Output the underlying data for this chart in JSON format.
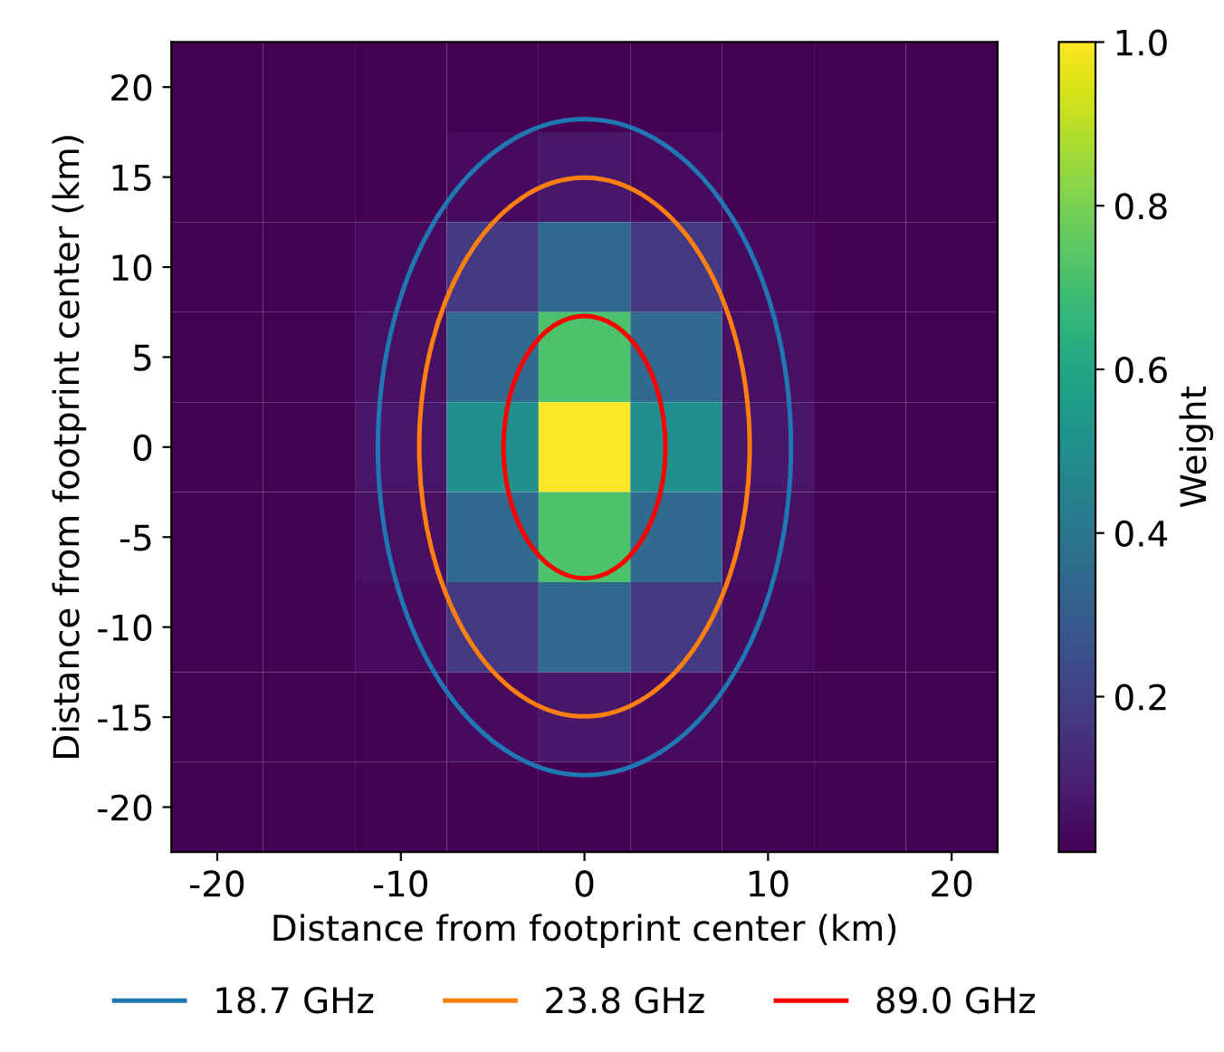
{
  "chart_data": {
    "type": "heatmap",
    "xlabel": "Distance from footprint center (km)",
    "ylabel": "Distance from footprint center (km)",
    "clabel": "Weight",
    "xlim": [
      -22.5,
      22.5
    ],
    "ylim": [
      -22.5,
      22.5
    ],
    "xticks": [
      -20,
      -10,
      0,
      10,
      20
    ],
    "yticks": [
      -20,
      -15,
      -10,
      -5,
      0,
      5,
      10,
      15,
      20
    ],
    "clim": [
      0.01,
      1.0
    ],
    "cticks": [
      0.2,
      0.4,
      0.6,
      0.8,
      {
        "value": 1.0,
        "label": "1.0"
      }
    ],
    "cells": [
      [
        0.01,
        0.01,
        0.01,
        0.01,
        0.01,
        0.01,
        0.01,
        0.01,
        0.01
      ],
      [
        0.01,
        0.01,
        0.01,
        0.04,
        0.07,
        0.04,
        0.01,
        0.01,
        0.01
      ],
      [
        0.01,
        0.01,
        0.04,
        0.18,
        0.35,
        0.18,
        0.04,
        0.01,
        0.01
      ],
      [
        0.01,
        0.01,
        0.05,
        0.35,
        0.72,
        0.35,
        0.05,
        0.01,
        0.01
      ],
      [
        0.01,
        0.01,
        0.07,
        0.5,
        1.0,
        0.5,
        0.07,
        0.01,
        0.01
      ],
      [
        0.01,
        0.01,
        0.05,
        0.35,
        0.72,
        0.35,
        0.05,
        0.01,
        0.01
      ],
      [
        0.01,
        0.01,
        0.04,
        0.18,
        0.35,
        0.18,
        0.04,
        0.01,
        0.01
      ],
      [
        0.01,
        0.01,
        0.01,
        0.04,
        0.07,
        0.04,
        0.01,
        0.01,
        0.01
      ],
      [
        0.01,
        0.01,
        0.01,
        0.01,
        0.01,
        0.01,
        0.01,
        0.01,
        0.01
      ]
    ],
    "annotations": [
      "18.7 GHz",
      "23.8 GHz",
      "89.0 GHz"
    ],
    "grid": false
  }
}
